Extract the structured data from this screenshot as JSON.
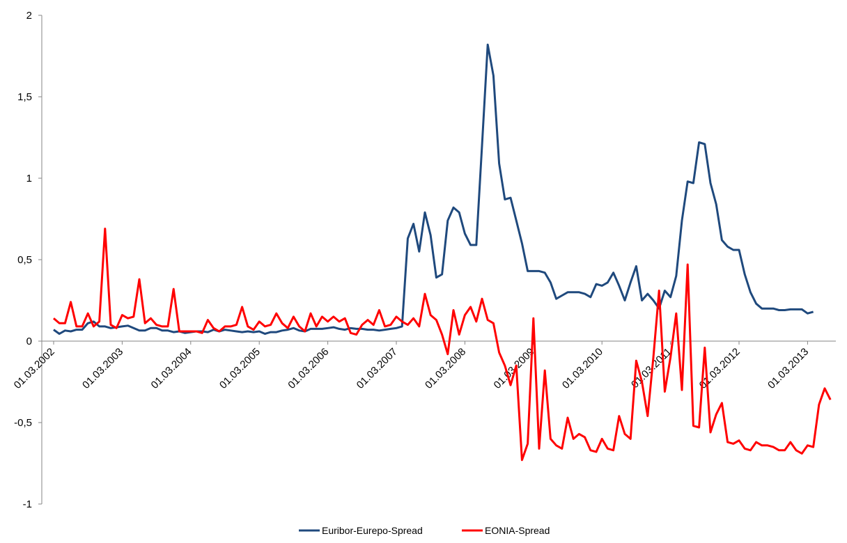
{
  "chart_data": {
    "type": "line",
    "title": "",
    "xlabel": "",
    "ylabel": "",
    "ylim": [
      -1,
      2
    ],
    "y_ticks": [
      2,
      1.5,
      1,
      0.5,
      0,
      -0.5,
      -1
    ],
    "y_tick_labels": [
      "2",
      "1,5",
      "1",
      "0,5",
      "0",
      "-0,5",
      "-1"
    ],
    "x_tick_labels": [
      "01.03.2002",
      "01.03.2003",
      "01.03.2004",
      "01.03.2005",
      "01.03.2006",
      "01.03.2007",
      "01.03.2008",
      "01.03.2009",
      "01.03.2010",
      "01.03.2011",
      "01.03.2012",
      "01.03.2013"
    ],
    "x_start": "2002-03",
    "x_frequency": "monthly",
    "grid": false,
    "legend_position": "bottom",
    "series": [
      {
        "name": "Euribor-Eurepo-Spread",
        "color": "#1F497D",
        "values": [
          0.07,
          0.045,
          0.065,
          0.06,
          0.07,
          0.07,
          0.11,
          0.12,
          0.09,
          0.09,
          0.08,
          0.085,
          0.09,
          0.095,
          0.08,
          0.065,
          0.065,
          0.08,
          0.08,
          0.065,
          0.065,
          0.055,
          0.06,
          0.05,
          0.055,
          0.06,
          0.06,
          0.055,
          0.07,
          0.06,
          0.07,
          0.065,
          0.06,
          0.055,
          0.06,
          0.055,
          0.06,
          0.045,
          0.055,
          0.055,
          0.065,
          0.07,
          0.08,
          0.065,
          0.06,
          0.075,
          0.075,
          0.075,
          0.08,
          0.085,
          0.075,
          0.07,
          0.08,
          0.075,
          0.075,
          0.07,
          0.07,
          0.065,
          0.07,
          0.075,
          0.08,
          0.09,
          0.63,
          0.72,
          0.55,
          0.79,
          0.65,
          0.39,
          0.41,
          0.74,
          0.82,
          0.79,
          0.66,
          0.59,
          0.59,
          1.2,
          1.82,
          1.63,
          1.09,
          0.87,
          0.88,
          0.74,
          0.6,
          0.43,
          0.43,
          0.43,
          0.42,
          0.36,
          0.26,
          0.28,
          0.3,
          0.3,
          0.3,
          0.29,
          0.27,
          0.35,
          0.34,
          0.36,
          0.42,
          0.34,
          0.25,
          0.36,
          0.46,
          0.25,
          0.29,
          0.25,
          0.2,
          0.31,
          0.27,
          0.4,
          0.74,
          0.98,
          0.97,
          1.22,
          1.21,
          0.97,
          0.84,
          0.62,
          0.58,
          0.56,
          0.56,
          0.41,
          0.3,
          0.23,
          0.2,
          0.2,
          0.2,
          0.19,
          0.19,
          0.195,
          0.195,
          0.195,
          0.17,
          0.18
        ]
      },
      {
        "name": "EONIA-Spread",
        "color": "#FF0000",
        "values": [
          0.14,
          0.11,
          0.11,
          0.24,
          0.09,
          0.09,
          0.17,
          0.09,
          0.12,
          0.69,
          0.1,
          0.08,
          0.16,
          0.14,
          0.15,
          0.38,
          0.11,
          0.14,
          0.1,
          0.09,
          0.09,
          0.32,
          0.06,
          0.06,
          0.06,
          0.06,
          0.05,
          0.13,
          0.08,
          0.06,
          0.09,
          0.09,
          0.1,
          0.21,
          0.09,
          0.07,
          0.12,
          0.09,
          0.1,
          0.17,
          0.11,
          0.08,
          0.15,
          0.09,
          0.06,
          0.17,
          0.09,
          0.15,
          0.12,
          0.15,
          0.12,
          0.14,
          0.05,
          0.04,
          0.1,
          0.13,
          0.1,
          0.19,
          0.09,
          0.1,
          0.15,
          0.12,
          0.1,
          0.14,
          0.09,
          0.29,
          0.16,
          0.13,
          0.04,
          -0.08,
          0.19,
          0.04,
          0.16,
          0.21,
          0.12,
          0.26,
          0.13,
          0.11,
          -0.07,
          -0.15,
          -0.27,
          -0.15,
          -0.73,
          -0.63,
          0.14,
          -0.66,
          -0.18,
          -0.6,
          -0.64,
          -0.66,
          -0.47,
          -0.6,
          -0.57,
          -0.59,
          -0.67,
          -0.68,
          -0.6,
          -0.66,
          -0.67,
          -0.46,
          -0.57,
          -0.6,
          -0.12,
          -0.25,
          -0.46,
          -0.1,
          0.31,
          -0.31,
          -0.1,
          0.17,
          -0.3,
          0.47,
          -0.52,
          -0.53,
          -0.04,
          -0.56,
          -0.45,
          -0.38,
          -0.62,
          -0.63,
          -0.61,
          -0.66,
          -0.67,
          -0.62,
          -0.64,
          -0.64,
          -0.65,
          -0.67,
          -0.67,
          -0.62,
          -0.67,
          -0.69,
          -0.64,
          -0.65,
          -0.39,
          -0.29,
          -0.36
        ]
      }
    ]
  }
}
